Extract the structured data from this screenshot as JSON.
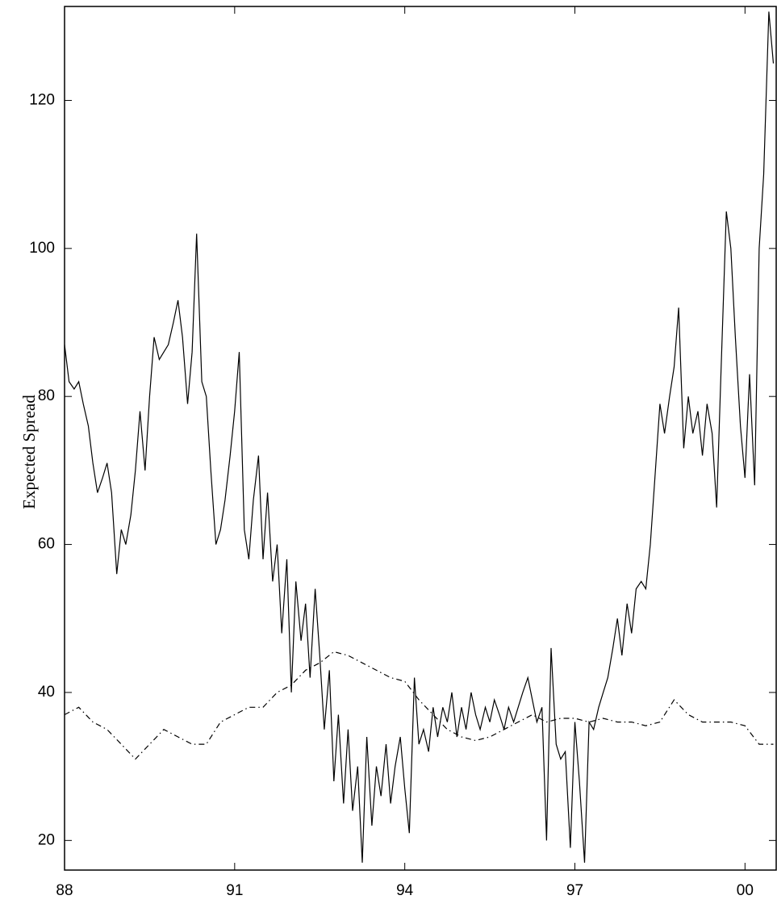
{
  "chart_data": {
    "type": "line",
    "ylabel": "Expected Spread",
    "xlim": [
      1988,
      2000.55
    ],
    "ylim": [
      16,
      132.7
    ],
    "xticks": [
      {
        "value": 1988,
        "label": "88"
      },
      {
        "value": 1991,
        "label": "91"
      },
      {
        "value": 1994,
        "label": "94"
      },
      {
        "value": 1997,
        "label": "97"
      },
      {
        "value": 2000,
        "label": "00"
      }
    ],
    "yticks": [
      20,
      40,
      60,
      80,
      100,
      120
    ],
    "grid": false,
    "series": [
      {
        "color": "#000000",
        "dash": "solid",
        "x": [
          1988.0,
          1988.08,
          1988.17,
          1988.25,
          1988.33,
          1988.42,
          1988.5,
          1988.58,
          1988.67,
          1988.75,
          1988.83,
          1988.92,
          1989.0,
          1989.08,
          1989.17,
          1989.25,
          1989.33,
          1989.42,
          1989.5,
          1989.58,
          1989.67,
          1989.75,
          1989.83,
          1989.92,
          1990.0,
          1990.08,
          1990.17,
          1990.25,
          1990.33,
          1990.42,
          1990.5,
          1990.58,
          1990.67,
          1990.75,
          1990.83,
          1990.92,
          1991.0,
          1991.08,
          1991.17,
          1991.25,
          1991.33,
          1991.42,
          1991.5,
          1991.58,
          1991.67,
          1991.75,
          1991.83,
          1991.92,
          1992.0,
          1992.08,
          1992.17,
          1992.25,
          1992.33,
          1992.42,
          1992.5,
          1992.58,
          1992.67,
          1992.75,
          1992.83,
          1992.92,
          1993.0,
          1993.08,
          1993.17,
          1993.25,
          1993.33,
          1993.42,
          1993.5,
          1993.58,
          1993.67,
          1993.75,
          1993.83,
          1993.92,
          1994.0,
          1994.08,
          1994.17,
          1994.25,
          1994.33,
          1994.42,
          1994.5,
          1994.58,
          1994.67,
          1994.75,
          1994.83,
          1994.92,
          1995.0,
          1995.08,
          1995.17,
          1995.25,
          1995.33,
          1995.42,
          1995.5,
          1995.58,
          1995.67,
          1995.75,
          1995.83,
          1995.92,
          1996.0,
          1996.08,
          1996.17,
          1996.25,
          1996.33,
          1996.42,
          1996.5,
          1996.58,
          1996.67,
          1996.75,
          1996.83,
          1996.92,
          1997.0,
          1997.08,
          1997.17,
          1997.25,
          1997.33,
          1997.42,
          1997.5,
          1997.58,
          1997.67,
          1997.75,
          1997.83,
          1997.92,
          1998.0,
          1998.08,
          1998.17,
          1998.25,
          1998.33,
          1998.42,
          1998.5,
          1998.58,
          1998.67,
          1998.75,
          1998.83,
          1998.92,
          1999.0,
          1999.08,
          1999.17,
          1999.25,
          1999.33,
          1999.42,
          1999.5,
          1999.58,
          1999.67,
          1999.75,
          1999.83,
          1999.92,
          2000.0,
          2000.08,
          2000.17,
          2000.25,
          2000.33,
          2000.42,
          2000.5
        ],
        "values": [
          87,
          82,
          81,
          82,
          79,
          76,
          71,
          67,
          69,
          71,
          67,
          56,
          62,
          60,
          64,
          70,
          78,
          70,
          80,
          88,
          85,
          86,
          87,
          90,
          93,
          88,
          79,
          86,
          102,
          82,
          80,
          70,
          60,
          62,
          66,
          72,
          78,
          86,
          62,
          58,
          66,
          72,
          58,
          67,
          55,
          60,
          48,
          58,
          40,
          55,
          47,
          52,
          42,
          54,
          45,
          35,
          43,
          28,
          37,
          25,
          35,
          24,
          30,
          17,
          34,
          22,
          30,
          26,
          33,
          25,
          30,
          34,
          27,
          21,
          42,
          33,
          35,
          32,
          38,
          34,
          38,
          36,
          40,
          34,
          38,
          35,
          40,
          37,
          35,
          38,
          36,
          39,
          37,
          35,
          38,
          36,
          38,
          40,
          42,
          39,
          36,
          38,
          20,
          46,
          33,
          31,
          32,
          19,
          36,
          28,
          17,
          36,
          35,
          38,
          40,
          42,
          46,
          50,
          45,
          52,
          48,
          54,
          55,
          54,
          60,
          70,
          79,
          75,
          80,
          84,
          92,
          73,
          80,
          75,
          78,
          72,
          79,
          75,
          65,
          84,
          105,
          100,
          88,
          76,
          69,
          83,
          68,
          100,
          110,
          132,
          125
        ]
      },
      {
        "color": "#000000",
        "dash": "dashdot",
        "x": [
          1988.0,
          1988.25,
          1988.5,
          1988.75,
          1989.0,
          1989.25,
          1989.5,
          1989.75,
          1990.0,
          1990.25,
          1990.5,
          1990.75,
          1991.0,
          1991.25,
          1991.5,
          1991.75,
          1992.0,
          1992.25,
          1992.5,
          1992.75,
          1993.0,
          1993.25,
          1993.5,
          1993.75,
          1994.0,
          1994.25,
          1994.5,
          1994.75,
          1995.0,
          1995.25,
          1995.5,
          1995.75,
          1996.0,
          1996.25,
          1996.5,
          1996.75,
          1997.0,
          1997.25,
          1997.5,
          1997.75,
          1998.0,
          1998.25,
          1998.5,
          1998.75,
          1999.0,
          1999.25,
          1999.5,
          1999.75,
          2000.0,
          2000.25,
          2000.5
        ],
        "values": [
          37,
          38,
          36,
          35,
          33,
          31,
          33,
          35,
          34,
          33,
          33,
          36,
          37,
          38,
          38,
          40,
          41,
          43,
          44,
          45.5,
          45,
          44,
          43,
          42,
          41.5,
          39,
          37,
          35,
          34,
          33.5,
          34,
          35,
          36,
          37,
          36,
          36.5,
          36.5,
          36,
          36.5,
          36,
          36,
          35.5,
          36,
          39,
          37,
          36,
          36,
          36,
          35.5,
          33,
          33
        ]
      }
    ]
  }
}
